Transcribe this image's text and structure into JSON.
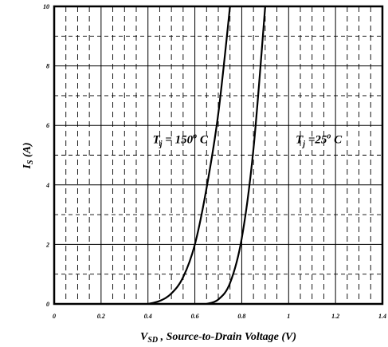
{
  "chart_data": {
    "type": "line",
    "title": "",
    "xlabel": {
      "main": "V",
      "sub": "SD",
      "rest": " , Source-to-Drain Voltage (V)"
    },
    "ylabel": {
      "main": "I",
      "sub": "S",
      "rest": " (A)"
    },
    "xlim": [
      0,
      1.4
    ],
    "ylim": [
      0,
      10
    ],
    "x_ticks": [
      "0",
      "0.2",
      "0.4",
      "0.6",
      "0.8",
      "1",
      "1.2",
      "1.4"
    ],
    "y_ticks": [
      "0",
      "2",
      "4",
      "6",
      "8",
      "10"
    ],
    "grid": true,
    "series": [
      {
        "points": [
          [
            0.4,
            0.0
          ],
          [
            0.45,
            0.1
          ],
          [
            0.5,
            0.35
          ],
          [
            0.55,
            0.9
          ],
          [
            0.6,
            2.0
          ],
          [
            0.65,
            3.9
          ],
          [
            0.7,
            6.4
          ],
          [
            0.75,
            10.0
          ]
        ]
      },
      {
        "points": [
          [
            0.65,
            0.0
          ],
          [
            0.7,
            0.15
          ],
          [
            0.75,
            0.7
          ],
          [
            0.8,
            2.2
          ],
          [
            0.85,
            5.2
          ],
          [
            0.9,
            10.0
          ]
        ]
      }
    ],
    "annotations": [
      {
        "main": "T",
        "sub": "j",
        "rest": " = 150",
        "sup": "o",
        "unit": " C",
        "x": 0.42,
        "y": 5.4
      },
      {
        "main": "T",
        "sub": "j",
        "rest": " =25",
        "sup": "o",
        "unit": " C",
        "x": 1.03,
        "y": 5.4
      }
    ]
  }
}
